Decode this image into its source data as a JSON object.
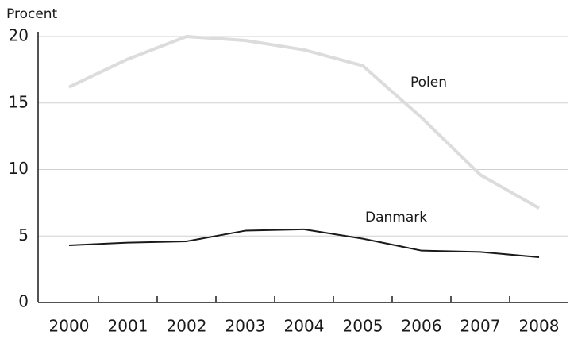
{
  "chart_data": {
    "type": "line",
    "y_label": "Procent",
    "categories": [
      "2000",
      "2001",
      "2002",
      "2003",
      "2004",
      "2005",
      "2006",
      "2007",
      "2008"
    ],
    "series": [
      {
        "name": "Polen",
        "color": "#dcdcdc",
        "values": [
          16.2,
          18.3,
          20.0,
          19.7,
          19.0,
          17.8,
          13.9,
          9.6,
          7.1
        ]
      },
      {
        "name": "Danmark",
        "color": "#1a1a1a",
        "values": [
          4.3,
          4.5,
          4.6,
          5.4,
          5.5,
          4.8,
          3.9,
          3.8,
          3.4
        ]
      }
    ],
    "ylim": [
      0,
      20
    ],
    "yticks": [
      0,
      5,
      10,
      15,
      20
    ],
    "grid": true
  }
}
